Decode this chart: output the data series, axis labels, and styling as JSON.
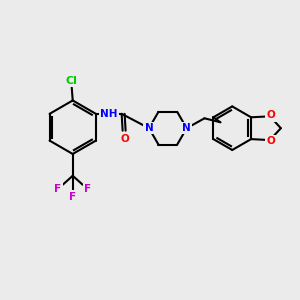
{
  "background_color": "#ebebeb",
  "bond_color": "#000000",
  "line_width": 1.5,
  "atom_colors": {
    "N": "#0000ff",
    "O": "#ff0000",
    "Cl": "#00cc00",
    "F": "#cc00cc",
    "H": "#555555",
    "C": "#000000"
  },
  "font_size": 7.5
}
